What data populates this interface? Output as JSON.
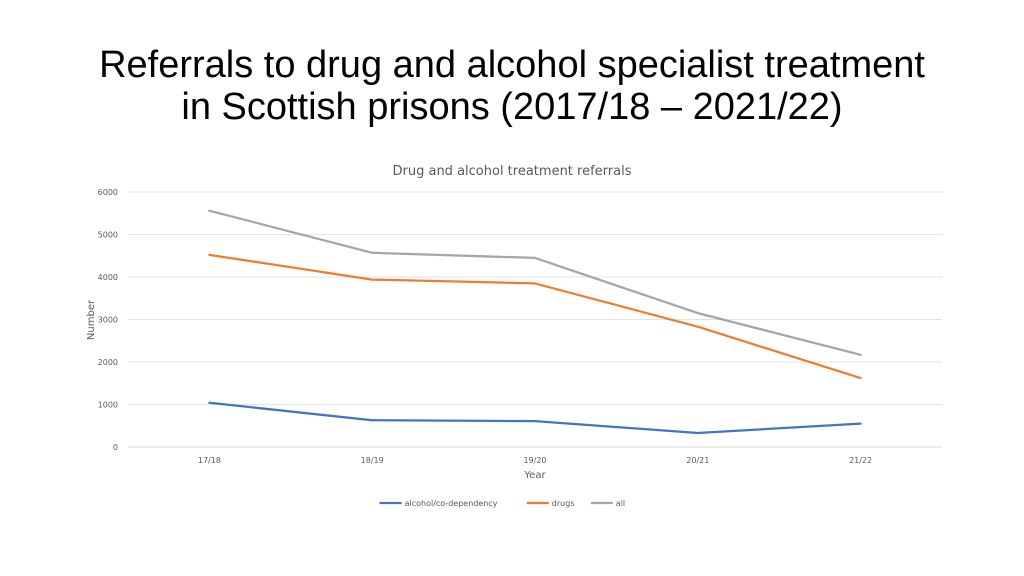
{
  "slide": {
    "title_line1": "Referrals to drug and alcohol specialist treatment",
    "title_line2": "in Scottish prisons (2017/18 – 2021/22)"
  },
  "chart_data": {
    "type": "line",
    "title": "Drug and alcohol treatment referrals",
    "xlabel": "Year",
    "ylabel": "Number",
    "categories": [
      "17/18",
      "18/19",
      "19/20",
      "20/21",
      "21/22"
    ],
    "ylim": [
      0,
      6000
    ],
    "yticks": [
      0,
      1000,
      2000,
      3000,
      4000,
      5000,
      6000
    ],
    "grid": true,
    "legend_position": "bottom",
    "series": [
      {
        "name": "alcohol/co-dependency",
        "color": "#4472C4",
        "values": [
          1040,
          630,
          610,
          330,
          550
        ]
      },
      {
        "name": "drugs",
        "color": "#ED7D31",
        "values": [
          4520,
          3940,
          3850,
          2830,
          1620
        ]
      },
      {
        "name": "all",
        "color": "#A5A5A5",
        "values": [
          5560,
          4570,
          4450,
          3150,
          2170
        ]
      }
    ]
  }
}
